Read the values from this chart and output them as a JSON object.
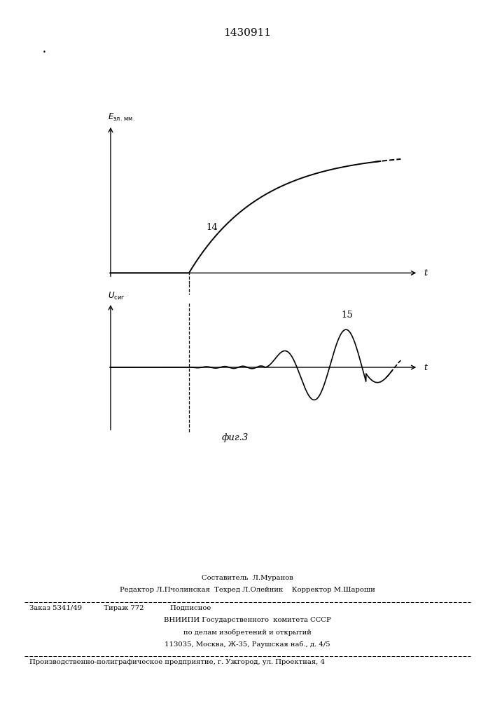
{
  "title": "1430911",
  "title_fontsize": 11,
  "background_color": "#ffffff",
  "fig_width": 7.07,
  "fig_height": 10.0,
  "t0": 0.27,
  "top_graph": {
    "ylabel": "Eэл.мм.",
    "xlabel": "t",
    "label_14": "14"
  },
  "bottom_graph": {
    "ylabel": "Uсиг",
    "xlabel": "t",
    "label_15": "15",
    "fig_label": "фиг.3"
  },
  "footer": {
    "line1": "Составитель  Л.Муранов",
    "line2": "Редактор Л.Пчолинская  Техред Л.Олейник⁣    Корректор М.Шароши",
    "line3": "Заказ 5341/49          Тираж 772            Подписное",
    "line4": "ВНИИПИ Государственного  комитета СССР",
    "line5": "по делам изобретений и открытий",
    "line6": "113035, Москва, Ж-35, Раушская наб., д. 4/5",
    "line7": "Производственно-полиграфическое предприятие, г. Ужгород, ул. Проектная, 4"
  }
}
